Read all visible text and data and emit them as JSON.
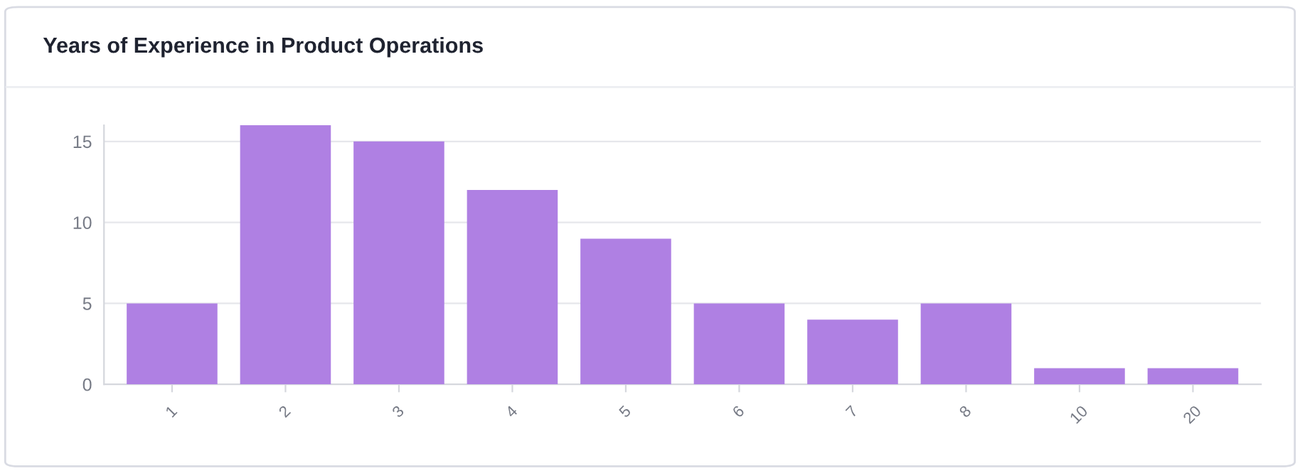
{
  "chart_data": {
    "type": "bar",
    "title": "Years of Experience in Product Operations",
    "categories": [
      "1",
      "2",
      "3",
      "4",
      "5",
      "6",
      "7",
      "8",
      "10",
      "20"
    ],
    "values": [
      5,
      16,
      15,
      12,
      9,
      5,
      4,
      5,
      1,
      1
    ],
    "color": "#af80e3",
    "ylim": [
      0,
      16
    ],
    "yticks": [
      0,
      5,
      10,
      15
    ],
    "grid": "y"
  }
}
